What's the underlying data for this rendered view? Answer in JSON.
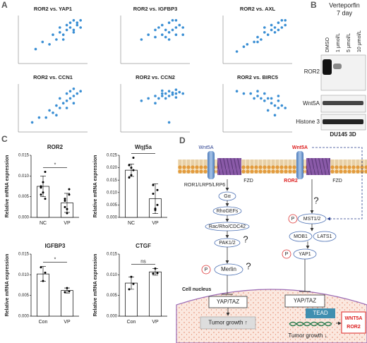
{
  "panel_labels": [
    "A",
    "B",
    "C",
    "D"
  ],
  "chart_data": [
    {
      "type": "scatter",
      "title": "ROR2 vs. YAP1",
      "color": "#3b8fd4",
      "xlim": [
        0,
        10
      ],
      "ylim": [
        0,
        10
      ],
      "x": [
        2.5,
        3.5,
        4.5,
        5,
        5.5,
        6,
        6,
        6.5,
        7,
        7,
        7.5,
        7.5,
        8,
        8,
        8.5,
        8.5,
        9,
        9,
        6.5,
        8
      ],
      "y": [
        3,
        4.5,
        4,
        6,
        5,
        6.5,
        7.5,
        6,
        7,
        8,
        7.5,
        8.5,
        7,
        9,
        8,
        8.5,
        9,
        7.5,
        5,
        6.5
      ]
    },
    {
      "type": "scatter",
      "title": "ROR2 vs. IGFBP3",
      "color": "#3b8fd4",
      "xlim": [
        0,
        10
      ],
      "ylim": [
        0,
        10
      ],
      "x": [
        3,
        4,
        5,
        5,
        6,
        6,
        6.5,
        7,
        7,
        7.5,
        7.5,
        8,
        8,
        8.5,
        9,
        5.5,
        6.5,
        7,
        8,
        9
      ],
      "y": [
        5,
        6,
        5.5,
        7,
        6,
        8,
        7,
        6.5,
        8.5,
        7,
        9,
        7.5,
        6,
        8,
        7.5,
        7.5,
        5.5,
        5,
        9,
        6
      ]
    },
    {
      "type": "scatter",
      "title": "ROR2 vs. AXL",
      "color": "#3b8fd4",
      "xlim": [
        0,
        10
      ],
      "ylim": [
        0,
        10
      ],
      "x": [
        2,
        3,
        3.5,
        4.5,
        5,
        5.5,
        6,
        6.5,
        7,
        7,
        7.5,
        8,
        8,
        8.5,
        9,
        9,
        6,
        7.5,
        5,
        8.5
      ],
      "y": [
        2.5,
        3.5,
        4,
        4.5,
        5.5,
        5,
        6.5,
        6,
        7,
        8,
        7.5,
        8.5,
        7,
        9,
        8,
        9,
        7.5,
        6.5,
        4.5,
        7.5
      ]
    },
    {
      "type": "scatter",
      "title": "ROR2 vs. CCN1",
      "color": "#3b8fd4",
      "xlim": [
        0,
        10
      ],
      "ylim": [
        0,
        10
      ],
      "x": [
        2,
        3,
        4,
        4.5,
        5,
        5.5,
        6,
        6.5,
        7,
        7,
        7.5,
        8,
        8,
        8.5,
        9,
        6,
        7,
        5.5,
        8,
        7.5
      ],
      "y": [
        2,
        3,
        3,
        4.5,
        4,
        5.5,
        5,
        6,
        6.5,
        8,
        7,
        7.5,
        9,
        8,
        8.5,
        7,
        5,
        3.5,
        6,
        8.5
      ]
    },
    {
      "type": "scatter",
      "title": "ROR2 vs. CCN2",
      "color": "#3b8fd4",
      "xlim": [
        0,
        10
      ],
      "ylim": [
        0,
        10
      ],
      "x": [
        3,
        4,
        5,
        5.5,
        6,
        6,
        6.5,
        6.5,
        7,
        7,
        7.5,
        7.5,
        8,
        8,
        8.5,
        9,
        5,
        7,
        6,
        8
      ],
      "y": [
        6.5,
        7,
        7.5,
        7,
        8,
        7.5,
        8,
        7,
        7.5,
        8.5,
        7.8,
        8.2,
        8,
        7.2,
        8.3,
        8,
        6,
        2,
        8.6,
        8.8
      ]
    },
    {
      "type": "scatter",
      "title": "ROR2 vs. BIRC5",
      "color": "#3b8fd4",
      "xlim": [
        0,
        10
      ],
      "ylim": [
        0,
        10
      ],
      "x": [
        2,
        3,
        4,
        4.5,
        5,
        5.5,
        6,
        6,
        6.5,
        7,
        7,
        7.5,
        8,
        8,
        8.5,
        9,
        6.5,
        7.5,
        5,
        8
      ],
      "y": [
        8.5,
        8,
        8,
        7,
        7.5,
        7,
        6.5,
        8,
        7,
        6,
        7,
        5.5,
        6.5,
        5,
        5.5,
        5,
        4.5,
        3.5,
        8.5,
        7.5
      ]
    },
    {
      "type": "bar",
      "title": "ROR2",
      "ylabel": "Relative mRNA expression",
      "color": "#ffffff",
      "categories": [
        "NC",
        "VP"
      ],
      "values": [
        0.0075,
        0.0035
      ],
      "errors": [
        0.0025,
        0.0023
      ],
      "points": [
        [
          0.0075,
          0.0085,
          0.011,
          0.0055,
          0.006,
          0.0045,
          0.0072
        ],
        [
          0.0025,
          0.001,
          0.0055,
          0.004,
          0.002,
          0.0068,
          0.0045
        ]
      ],
      "annotation": "*",
      "ylim": [
        0,
        0.015
      ],
      "yticks": [
        {
          "value": 0,
          "label": "0.000"
        },
        {
          "value": 0.005,
          "label": "0.005"
        },
        {
          "value": 0.01,
          "label": "0.010"
        },
        {
          "value": 0.015,
          "label": "0.015"
        }
      ]
    },
    {
      "type": "bar",
      "title": "Wnt5a",
      "ylabel": "Relative mRNA expression",
      "color": "#ffffff",
      "categories": [
        "NC",
        "VP"
      ],
      "values": [
        0.019,
        0.0075
      ],
      "errors": [
        0.0025,
        0.006
      ],
      "points": [
        [
          0.021,
          0.017,
          0.019,
          0.016,
          0.02,
          0.024
        ],
        [
          0.013,
          0.0035,
          0.011,
          0.0095,
          0.003,
          0.005
        ]
      ],
      "annotation": "**",
      "ylim": [
        0,
        0.025
      ],
      "yticks": [
        {
          "value": 0,
          "label": "0.000"
        },
        {
          "value": 0.005,
          "label": "0.005"
        },
        {
          "value": 0.01,
          "label": "0.010"
        },
        {
          "value": 0.015,
          "label": "0.015"
        },
        {
          "value": 0.02,
          "label": "0.020"
        },
        {
          "value": 0.025,
          "label": "0.025"
        }
      ]
    },
    {
      "type": "bar",
      "title": "IGFBP3",
      "ylabel": "Relative mRNA expression",
      "color": "#ffffff",
      "categories": [
        "Con",
        "VP"
      ],
      "values": [
        0.0102,
        0.0062
      ],
      "errors": [
        0.0018,
        0.0006
      ],
      "points": [
        [
          0.0118,
          0.0085,
          0.0105
        ],
        [
          0.0058,
          0.0068,
          0.006
        ]
      ],
      "annotation": "*",
      "ylim": [
        0,
        0.015
      ],
      "yticks": [
        {
          "value": 0,
          "label": "0.000"
        },
        {
          "value": 0.005,
          "label": "0.005"
        },
        {
          "value": 0.01,
          "label": "0.010"
        },
        {
          "value": 0.015,
          "label": "0.015"
        }
      ]
    },
    {
      "type": "bar",
      "title": "CTGF",
      "ylabel": "Relative mRNA expression",
      "color": "#ffffff",
      "categories": [
        "Con",
        "VP"
      ],
      "values": [
        0.008,
        0.0107
      ],
      "errors": [
        0.0015,
        0.0008
      ],
      "points": [
        [
          0.0065,
          0.0095,
          0.0078
        ],
        [
          0.0103,
          0.0115,
          0.0104
        ]
      ],
      "annotation": "ns",
      "ylim": [
        0,
        0.015
      ],
      "yticks": [
        {
          "value": 0,
          "label": "0.000"
        },
        {
          "value": 0.005,
          "label": "0.005"
        },
        {
          "value": 0.01,
          "label": "0.010"
        },
        {
          "value": 0.015,
          "label": "0.015"
        }
      ]
    }
  ],
  "blot": {
    "title": "Verteporfin",
    "subtitle": "7 day",
    "lanes": [
      "DMSO",
      "1 μmol/L",
      "5 μmol/L",
      "10 μmol/L"
    ],
    "rows": [
      "ROR2",
      "Wnt5A",
      "Histone 3"
    ],
    "caption": "DU145 3D"
  },
  "pathway": {
    "nodes": [
      "Wnt5A",
      "ROR1/LRP5/LRP6",
      "FZD",
      "Gα",
      "RhoGEFs",
      "Rac/Rho/CDC42",
      "PAK1/2",
      "?",
      "P",
      "Merlin",
      "?",
      "Cell nucleus",
      "YAP/TAZ",
      "Tumor growth ↑",
      "Wnt5A",
      "ROR2",
      "FZD",
      "?",
      "P",
      "MST1/2",
      "MOB1",
      "LATS1",
      "P",
      "YAP1",
      "YAP/TAZ",
      "TEAD",
      "Tumor growth ↓",
      "WNT5A",
      "ROR2"
    ]
  }
}
